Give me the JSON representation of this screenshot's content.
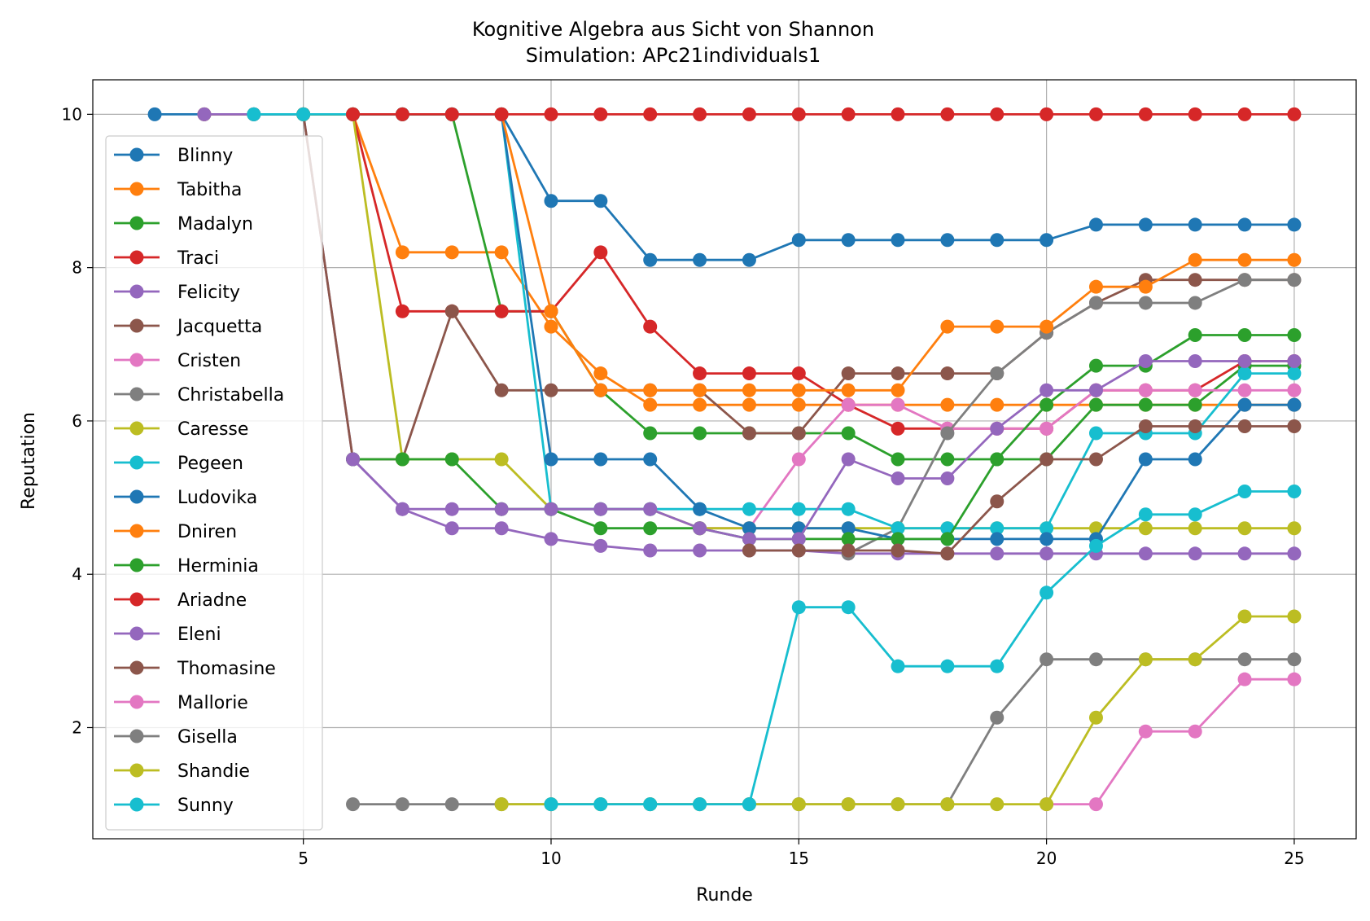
{
  "chart_data": {
    "type": "line",
    "title": "Kognitive Algebra aus Sicht von Shannon",
    "subtitle": "Simulation: APc21individuals1",
    "xlabel": "Runde",
    "ylabel": "Reputation",
    "xlim": [
      0.75,
      26.25
    ],
    "ylim": [
      0.55,
      10.45
    ],
    "xticks": [
      5,
      10,
      15,
      20,
      25
    ],
    "yticks": [
      2,
      4,
      6,
      8,
      10
    ],
    "grid": true,
    "legend": "upper-left",
    "series": [
      {
        "name": "Blinny",
        "color": "#1f77b4",
        "x": [
          2,
          3,
          4,
          5,
          6,
          7,
          8,
          9,
          10,
          11,
          12,
          13,
          14,
          15,
          16,
          17,
          18,
          19,
          20,
          21,
          22,
          23,
          24,
          25
        ],
        "y": [
          10,
          10,
          10,
          10,
          10,
          10,
          10,
          10,
          8.87,
          8.87,
          8.1,
          8.1,
          8.1,
          8.36,
          8.36,
          8.36,
          8.36,
          8.36,
          8.36,
          8.56,
          8.56,
          8.56,
          8.56,
          8.56
        ]
      },
      {
        "name": "Tabitha",
        "color": "#ff7f0e",
        "x": [
          3,
          4,
          5,
          6,
          7,
          8,
          9,
          10,
          11,
          12,
          13,
          14,
          15,
          16,
          17,
          18,
          19,
          20,
          21,
          22,
          23,
          24,
          25
        ],
        "y": [
          10,
          10,
          10,
          10,
          8.2,
          8.2,
          8.2,
          7.23,
          6.62,
          6.21,
          6.21,
          6.21,
          6.21,
          6.21,
          6.21,
          6.21,
          6.21,
          6.21,
          6.21,
          6.21,
          6.21,
          6.21,
          6.21
        ]
      },
      {
        "name": "Madalyn",
        "color": "#2ca02c",
        "x": [
          4,
          5,
          6,
          7,
          8,
          9,
          10,
          11,
          12,
          13,
          14,
          15,
          16,
          17,
          18,
          19,
          20,
          21,
          22,
          23,
          24,
          25
        ],
        "y": [
          10,
          10,
          10,
          10,
          10,
          7.43,
          7.43,
          6.4,
          5.84,
          5.84,
          5.84,
          5.84,
          5.84,
          5.5,
          5.5,
          5.5,
          5.5,
          6.21,
          6.21,
          6.21,
          6.72,
          6.72
        ]
      },
      {
        "name": "Traci",
        "color": "#d62728",
        "x": [
          5,
          6,
          7,
          8,
          9,
          10,
          11,
          12,
          13,
          14,
          15,
          16,
          17,
          18,
          19,
          20,
          21,
          22,
          23,
          24,
          25
        ],
        "y": [
          10,
          10,
          7.43,
          7.43,
          7.43,
          7.43,
          8.2,
          7.23,
          6.62,
          6.62,
          6.62,
          6.21,
          5.9,
          5.9,
          5.9,
          5.9,
          6.4,
          6.4,
          6.4,
          6.78,
          6.78
        ]
      },
      {
        "name": "Felicity",
        "color": "#9467bd",
        "x": [
          3,
          4,
          5,
          6,
          7,
          8,
          9,
          10,
          11,
          12,
          13,
          14,
          15,
          16,
          17,
          18,
          19,
          20,
          21,
          22,
          23,
          24,
          25
        ],
        "y": [
          10,
          10,
          10,
          5.5,
          4.85,
          4.6,
          4.6,
          4.46,
          4.37,
          4.31,
          4.31,
          4.31,
          4.31,
          4.27,
          4.27,
          4.27,
          4.27,
          4.27,
          4.27,
          4.27,
          4.27,
          4.27,
          4.27
        ]
      },
      {
        "name": "Jacquetta",
        "color": "#8c564b",
        "x": [
          5,
          6,
          7,
          8,
          9,
          10,
          11,
          12,
          13,
          14,
          15,
          16,
          17,
          18,
          19,
          20,
          21,
          22,
          23,
          24,
          25
        ],
        "y": [
          10,
          5.5,
          5.5,
          7.43,
          6.4,
          6.4,
          6.4,
          6.4,
          6.4,
          5.84,
          5.84,
          6.62,
          6.62,
          6.62,
          6.62,
          7.15,
          7.54,
          7.84,
          7.84,
          7.84,
          7.84
        ]
      },
      {
        "name": "Cristen",
        "color": "#e377c2",
        "x": [
          13,
          14,
          15,
          16,
          17,
          18,
          19,
          20,
          21,
          22,
          23,
          24,
          25
        ],
        "y": [
          4.6,
          4.6,
          5.5,
          6.21,
          6.21,
          5.9,
          5.9,
          5.9,
          6.4,
          6.4,
          6.4,
          6.4,
          6.4
        ]
      },
      {
        "name": "Christabella",
        "color": "#7f7f7f",
        "x": [
          16,
          17,
          18,
          19,
          20,
          21,
          22,
          23,
          24,
          25
        ],
        "y": [
          4.27,
          4.6,
          5.84,
          6.62,
          7.15,
          7.54,
          7.54,
          7.54,
          7.84,
          7.84
        ]
      },
      {
        "name": "Caresse",
        "color": "#bcbd22",
        "x": [
          5,
          6,
          7,
          8,
          9,
          10,
          11,
          12,
          13,
          14,
          15,
          16,
          17,
          18,
          19,
          20,
          21,
          22,
          23,
          24,
          25
        ],
        "y": [
          10,
          10,
          5.5,
          5.5,
          5.5,
          4.85,
          4.85,
          4.85,
          4.6,
          4.6,
          4.6,
          4.6,
          4.6,
          4.6,
          4.6,
          4.6,
          4.6,
          4.6,
          4.6,
          4.6,
          4.6
        ]
      },
      {
        "name": "Pegeen",
        "color": "#17becf",
        "x": [
          4,
          5,
          6,
          7,
          8,
          9,
          10,
          11,
          12,
          13,
          14,
          15,
          16,
          17,
          18,
          19,
          20,
          21,
          22,
          23,
          24,
          25
        ],
        "y": [
          10,
          10,
          10,
          10,
          10,
          10,
          4.85,
          4.85,
          4.85,
          4.85,
          4.85,
          4.85,
          4.85,
          4.6,
          4.6,
          4.6,
          4.6,
          5.84,
          5.84,
          5.84,
          6.62,
          6.62
        ]
      },
      {
        "name": "Ludovika",
        "color": "#1f77b4",
        "x": [
          9,
          10,
          11,
          12,
          13,
          14,
          15,
          16,
          17,
          18,
          19,
          20,
          21,
          22,
          23,
          24,
          25
        ],
        "y": [
          10,
          5.5,
          5.5,
          5.5,
          4.85,
          4.6,
          4.6,
          4.6,
          4.46,
          4.46,
          4.46,
          4.46,
          4.46,
          5.5,
          5.5,
          6.21,
          6.21
        ]
      },
      {
        "name": "Dniren",
        "color": "#ff7f0e",
        "x": [
          9,
          10,
          11,
          12,
          13,
          14,
          15,
          16,
          17,
          18,
          19,
          20,
          21,
          22,
          23,
          24,
          25
        ],
        "y": [
          10,
          7.43,
          6.4,
          6.4,
          6.4,
          6.4,
          6.4,
          6.4,
          6.4,
          7.23,
          7.23,
          7.23,
          7.75,
          7.75,
          8.1,
          8.1,
          8.1
        ]
      },
      {
        "name": "Herminia",
        "color": "#2ca02c",
        "x": [
          6,
          7,
          8,
          9,
          10,
          11,
          12,
          13,
          14,
          15,
          16,
          17,
          18,
          19,
          20,
          21,
          22,
          23,
          24,
          25
        ],
        "y": [
          5.5,
          5.5,
          5.5,
          4.85,
          4.85,
          4.6,
          4.6,
          4.6,
          4.46,
          4.46,
          4.46,
          4.46,
          4.46,
          5.5,
          6.21,
          6.72,
          6.72,
          7.12,
          7.12,
          7.12
        ]
      },
      {
        "name": "Ariadne",
        "color": "#d62728",
        "x": [
          6,
          7,
          8,
          9,
          10,
          11,
          12,
          13,
          14,
          15,
          16,
          17,
          18,
          19,
          20,
          21,
          22,
          23,
          24,
          25
        ],
        "y": [
          10,
          10,
          10,
          10,
          10,
          10,
          10,
          10,
          10,
          10,
          10,
          10,
          10,
          10,
          10,
          10,
          10,
          10,
          10,
          10
        ]
      },
      {
        "name": "Eleni",
        "color": "#9467bd",
        "x": [
          6,
          7,
          8,
          9,
          10,
          11,
          12,
          13,
          14,
          15,
          16,
          17,
          18,
          19,
          20,
          21,
          22,
          23,
          24,
          25
        ],
        "y": [
          5.5,
          4.85,
          4.85,
          4.85,
          4.85,
          4.85,
          4.85,
          4.6,
          4.46,
          4.46,
          5.5,
          5.25,
          5.25,
          5.9,
          6.4,
          6.4,
          6.78,
          6.78,
          6.78,
          6.78
        ]
      },
      {
        "name": "Thomasine",
        "color": "#8c564b",
        "x": [
          14,
          15,
          16,
          17,
          18,
          19,
          20,
          21,
          22,
          23,
          24,
          25
        ],
        "y": [
          4.31,
          4.31,
          4.31,
          4.31,
          4.27,
          4.95,
          5.5,
          5.5,
          5.93,
          5.93,
          5.93,
          5.93
        ]
      },
      {
        "name": "Mallorie",
        "color": "#e377c2",
        "x": [
          20,
          21,
          22,
          23,
          24,
          25
        ],
        "y": [
          1,
          1,
          1.95,
          1.95,
          2.63,
          2.63
        ]
      },
      {
        "name": "Gisella",
        "color": "#7f7f7f",
        "x": [
          6,
          7,
          8,
          9,
          10,
          11,
          12,
          13,
          14,
          15,
          16,
          17,
          18,
          19,
          20,
          21,
          22,
          23,
          24,
          25
        ],
        "y": [
          1,
          1,
          1,
          1,
          1,
          1,
          1,
          1,
          1,
          1,
          1,
          1,
          1,
          2.13,
          2.89,
          2.89,
          2.89,
          2.89,
          2.89,
          2.89
        ]
      },
      {
        "name": "Shandie",
        "color": "#bcbd22",
        "x": [
          9,
          10,
          11,
          12,
          13,
          14,
          15,
          16,
          17,
          18,
          19,
          20,
          21,
          22,
          23,
          24,
          25
        ],
        "y": [
          1,
          1,
          1,
          1,
          1,
          1,
          1,
          1,
          1,
          1,
          1,
          1,
          2.13,
          2.89,
          2.89,
          3.45,
          3.45
        ]
      },
      {
        "name": "Sunny",
        "color": "#17becf",
        "x": [
          10,
          11,
          12,
          13,
          14,
          15,
          16,
          17,
          18,
          19,
          20,
          21,
          22,
          23,
          24,
          25
        ],
        "y": [
          1,
          1,
          1,
          1,
          1,
          3.57,
          3.57,
          2.8,
          2.8,
          2.8,
          3.76,
          4.37,
          4.78,
          4.78,
          5.08,
          5.08
        ]
      }
    ]
  }
}
